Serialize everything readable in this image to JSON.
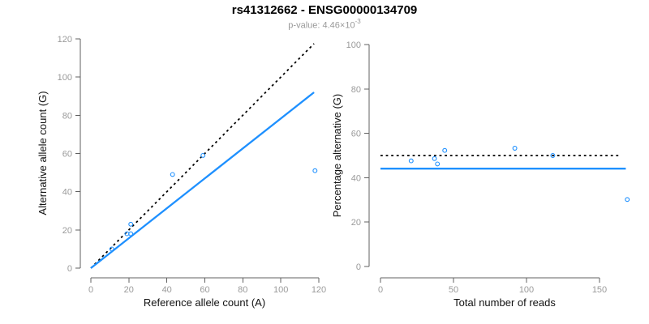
{
  "header": {
    "title": "rs41312662 - ENSG00000134709",
    "pvalue_label": "p-value: 4.46×10",
    "pvalue_exponent": "-3"
  },
  "colors": {
    "point_and_fit_blue": "#1E90FF",
    "reference_dotted_black": "#000000",
    "axis_line_gray": "#606060",
    "tick_label_gray": "#9a9a9a",
    "axis_title_black": "#111111",
    "subtitle_gray": "#999999",
    "background": "#ffffff"
  },
  "chart_data": [
    {
      "id": "allele-count-scatter",
      "type": "scatter",
      "xlabel": "Reference allele count (A)",
      "ylabel": "Alternative allele count (G)",
      "xlim": [
        0,
        120
      ],
      "ylim": [
        0,
        120
      ],
      "xticks": [
        0,
        20,
        40,
        60,
        80,
        100,
        120
      ],
      "yticks": [
        0,
        20,
        40,
        60,
        80,
        100,
        120
      ],
      "grid": false,
      "legend": null,
      "points": [
        [
          11,
          10
        ],
        [
          19,
          18
        ],
        [
          21,
          18
        ],
        [
          21,
          23
        ],
        [
          43,
          49
        ],
        [
          59,
          59
        ],
        [
          118,
          51
        ]
      ],
      "lines": [
        {
          "name": "identity-line",
          "style": "dotted",
          "color": "#000000",
          "from": [
            0,
            0
          ],
          "to": [
            117.5,
            117.5
          ]
        },
        {
          "name": "fitted-proportion-line",
          "style": "solid",
          "color": "#1E90FF",
          "from": [
            0,
            0
          ],
          "to": [
            117.5,
            92
          ]
        }
      ]
    },
    {
      "id": "percentage-scatter",
      "type": "scatter",
      "xlabel": "Total number of reads",
      "ylabel": "Percentage alternative (G)",
      "xlim": [
        0,
        150
      ],
      "ylim": [
        0,
        100
      ],
      "xticks": [
        0,
        50,
        100,
        150
      ],
      "yticks": [
        0,
        20,
        40,
        60,
        80,
        100
      ],
      "grid": false,
      "legend": null,
      "points": [
        [
          21,
          47.6
        ],
        [
          37,
          48.6
        ],
        [
          39,
          46.2
        ],
        [
          44,
          52.3
        ],
        [
          92,
          53.3
        ],
        [
          118,
          50
        ],
        [
          169,
          30.2
        ]
      ],
      "lines": [
        {
          "name": "fifty-percent-line",
          "style": "dotted",
          "color": "#000000",
          "from": [
            0,
            50
          ],
          "to": [
            165,
            50
          ]
        },
        {
          "name": "mean-percentage-line",
          "style": "solid",
          "color": "#1E90FF",
          "from": [
            0,
            44.1
          ],
          "to": [
            168,
            44.1
          ]
        }
      ]
    }
  ]
}
